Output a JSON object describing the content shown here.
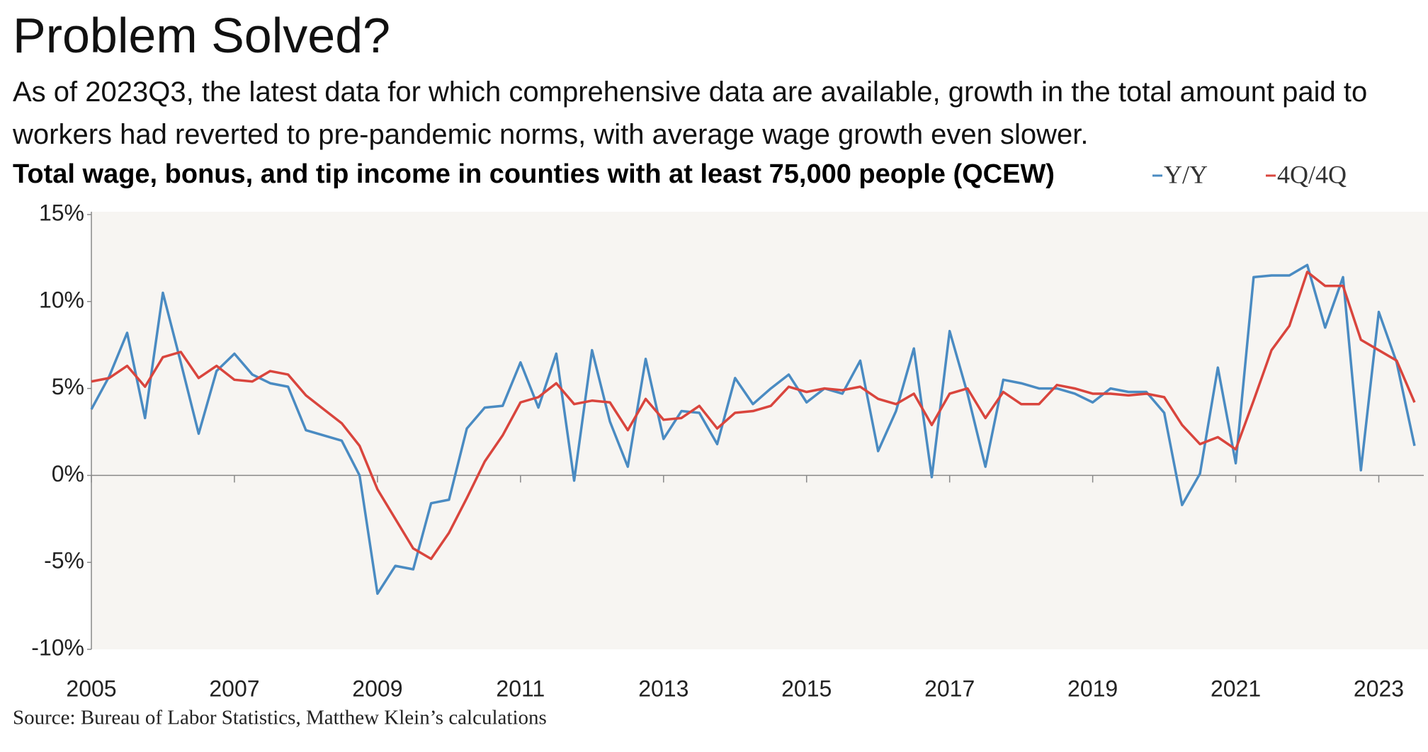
{
  "chart_data": {
    "type": "line",
    "title": "Problem Solved?",
    "subtitle": "As of 2023Q3, the latest data for which comprehensive data are available, growth in the total amount paid to workers had reverted to pre-pandemic norms, with average wage growth even slower.",
    "chart_title": "Total wage, bonus, and tip income in counties with at least 75,000 people (QCEW)",
    "source": "Source: Bureau of Labor Statistics, Matthew Klein’s calculations",
    "x": [
      2005,
      2005.25,
      2005.5,
      2005.75,
      2006,
      2006.25,
      2006.5,
      2006.75,
      2007,
      2007.25,
      2007.5,
      2007.75,
      2008,
      2008.25,
      2008.5,
      2008.75,
      2009,
      2009.25,
      2009.5,
      2009.75,
      2010,
      2010.25,
      2010.5,
      2010.75,
      2011,
      2011.25,
      2011.5,
      2011.75,
      2012,
      2012.25,
      2012.5,
      2012.75,
      2013,
      2013.25,
      2013.5,
      2013.75,
      2014,
      2014.25,
      2014.5,
      2014.75,
      2015,
      2015.25,
      2015.5,
      2015.75,
      2016,
      2016.25,
      2016.5,
      2016.75,
      2017,
      2017.25,
      2017.5,
      2017.75,
      2018,
      2018.25,
      2018.5,
      2018.75,
      2019,
      2019.25,
      2019.5,
      2019.75,
      2020,
      2020.25,
      2020.5,
      2020.75,
      2021,
      2021.25,
      2021.5,
      2021.75,
      2022,
      2022.25,
      2022.5,
      2022.75,
      2023,
      2023.25,
      2023.5
    ],
    "series": [
      {
        "name": "Y/Y",
        "color": "#4a8bc2",
        "values": [
          3.8,
          5.7,
          8.2,
          3.3,
          10.5,
          6.5,
          2.4,
          6.0,
          7.0,
          5.8,
          5.3,
          5.1,
          2.6,
          2.3,
          2.0,
          0.0,
          -6.8,
          -5.2,
          -5.4,
          -1.6,
          -1.4,
          2.7,
          3.9,
          4.0,
          6.5,
          3.9,
          7.0,
          -0.3,
          7.2,
          3.1,
          0.5,
          6.7,
          2.1,
          3.7,
          3.6,
          1.8,
          5.6,
          4.1,
          5.0,
          5.8,
          4.2,
          5.0,
          4.7,
          6.6,
          1.4,
          3.7,
          7.3,
          -0.1,
          8.3,
          4.7,
          0.5,
          5.5,
          5.3,
          5.0,
          5.0,
          4.7,
          4.2,
          5.0,
          4.8,
          4.8,
          3.6,
          -1.7,
          0.1,
          6.2,
          0.7,
          11.4,
          11.5,
          11.5,
          12.1,
          8.5,
          11.4,
          0.3,
          9.4,
          6.5,
          1.7
        ]
      },
      {
        "name": "4Q/4Q",
        "color": "#d9453d",
        "values": [
          5.4,
          5.6,
          6.3,
          5.1,
          6.8,
          7.1,
          5.6,
          6.3,
          5.5,
          5.4,
          6.0,
          5.8,
          4.6,
          3.8,
          3.0,
          1.7,
          -0.8,
          -2.5,
          -4.2,
          -4.8,
          -3.3,
          -1.3,
          0.8,
          2.3,
          4.2,
          4.5,
          5.3,
          4.1,
          4.3,
          4.2,
          2.6,
          4.4,
          3.2,
          3.3,
          4.0,
          2.7,
          3.6,
          3.7,
          4.0,
          5.1,
          4.8,
          5.0,
          4.9,
          5.1,
          4.4,
          4.1,
          4.7,
          2.9,
          4.7,
          5.0,
          3.3,
          4.8,
          4.1,
          4.1,
          5.2,
          5.0,
          4.7,
          4.7,
          4.6,
          4.7,
          4.5,
          2.9,
          1.8,
          2.2,
          1.5,
          4.3,
          7.2,
          8.6,
          11.7,
          10.9,
          10.9,
          7.8,
          7.2,
          6.6,
          4.2
        ]
      }
    ],
    "xlim": [
      2005,
      2023.5
    ],
    "xticks": [
      2005,
      2007,
      2009,
      2011,
      2013,
      2015,
      2017,
      2019,
      2021,
      2023
    ],
    "ylim": [
      -10,
      15
    ],
    "yticks": [
      {
        "value": -10,
        "label": "-10%"
      },
      {
        "value": -5,
        "label": "-5%"
      },
      {
        "value": 0,
        "label": "0%"
      },
      {
        "value": 5,
        "label": "5%"
      },
      {
        "value": 10,
        "label": "10%"
      },
      {
        "value": 15,
        "label": "15%"
      }
    ],
    "background": "#f7f5f2"
  }
}
